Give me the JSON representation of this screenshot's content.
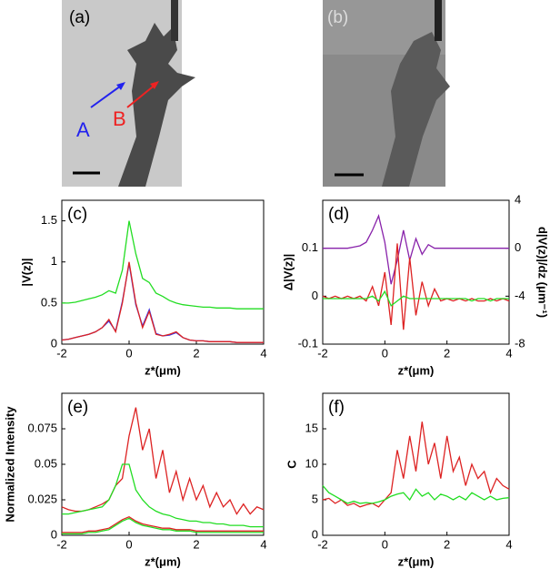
{
  "chart_data": [
    {
      "type": "image",
      "label": "(a)",
      "annotations": [
        "A",
        "B"
      ]
    },
    {
      "type": "image",
      "label": "(b)"
    },
    {
      "type": "line",
      "label": "(c)",
      "ylabel": "|V(z)|",
      "xlabel": "z*(μm)",
      "x": [
        -2,
        -1.8,
        -1.6,
        -1.4,
        -1.2,
        -1,
        -0.8,
        -0.6,
        -0.4,
        -0.2,
        0,
        0.2,
        0.4,
        0.6,
        0.8,
        1,
        1.2,
        1.4,
        1.6,
        1.8,
        2,
        2.2,
        2.4,
        2.6,
        2.8,
        3,
        3.2,
        3.4,
        3.6,
        3.8,
        4
      ],
      "xlim": [
        -2,
        4
      ],
      "xticks": [
        -2,
        0,
        2,
        4
      ],
      "ylim": [
        0,
        1.75
      ],
      "yticks": [
        0,
        0.5,
        1,
        1.5
      ],
      "series": [
        {
          "color": "#22dd22",
          "values": [
            0.5,
            0.5,
            0.51,
            0.53,
            0.55,
            0.57,
            0.6,
            0.65,
            0.62,
            0.9,
            1.5,
            1.1,
            0.8,
            0.75,
            0.62,
            0.58,
            0.53,
            0.5,
            0.48,
            0.47,
            0.46,
            0.45,
            0.45,
            0.44,
            0.44,
            0.44,
            0.43,
            0.43,
            0.43,
            0.43,
            0.43
          ]
        },
        {
          "color": "#3333ee",
          "values": [
            0.05,
            0.06,
            0.08,
            0.1,
            0.12,
            0.15,
            0.2,
            0.28,
            0.16,
            0.52,
            0.98,
            0.48,
            0.22,
            0.42,
            0.13,
            0.1,
            0.11,
            0.14,
            0.08,
            0.05,
            0.04,
            0.04,
            0.03,
            0.03,
            0.03,
            0.03,
            0.02,
            0.02,
            0.02,
            0.02,
            0.02
          ]
        },
        {
          "color": "#dd2222",
          "values": [
            0.05,
            0.06,
            0.08,
            0.1,
            0.12,
            0.15,
            0.2,
            0.3,
            0.15,
            0.5,
            1.0,
            0.5,
            0.2,
            0.4,
            0.12,
            0.1,
            0.12,
            0.15,
            0.08,
            0.05,
            0.04,
            0.04,
            0.03,
            0.03,
            0.03,
            0.03,
            0.02,
            0.02,
            0.02,
            0.02,
            0.02
          ]
        }
      ]
    },
    {
      "type": "line",
      "label": "(d)",
      "ylabel": "Δ|V(z)|",
      "y2label": "d|V(z)|/dz (μm⁻¹)",
      "xlabel": "z*(μm)",
      "x": [
        -2,
        -1.8,
        -1.6,
        -1.4,
        -1.2,
        -1,
        -0.8,
        -0.6,
        -0.4,
        -0.2,
        0,
        0.2,
        0.4,
        0.6,
        0.8,
        1,
        1.2,
        1.4,
        1.6,
        1.8,
        2,
        2.2,
        2.4,
        2.6,
        2.8,
        3,
        3.2,
        3.4,
        3.6,
        3.8,
        4
      ],
      "xlim": [
        -2,
        4
      ],
      "xticks": [
        -2,
        0,
        2,
        4
      ],
      "ylim": [
        -0.1,
        0.2
      ],
      "yticks": [
        -0.1,
        0,
        0.1
      ],
      "y2lim": [
        -8,
        4
      ],
      "y2ticks": [
        -8,
        -4,
        0,
        4
      ],
      "series": [
        {
          "color": "#8822aa",
          "axis": "y2",
          "values": [
            0,
            0,
            0,
            0,
            0,
            0.1,
            0.2,
            0.5,
            1.5,
            2.7,
            0.5,
            -3,
            -1,
            1.5,
            -1,
            0.8,
            -0.5,
            0.3,
            0,
            0,
            0,
            0,
            0,
            0,
            0,
            0,
            0,
            0,
            0,
            0,
            0
          ]
        },
        {
          "color": "#dd2222",
          "values": [
            0,
            -0.005,
            0,
            -0.005,
            0,
            -0.005,
            0,
            -0.01,
            0.02,
            -0.02,
            0.05,
            -0.06,
            0.11,
            -0.07,
            0.08,
            -0.04,
            0.03,
            -0.02,
            0.015,
            -0.01,
            -0.005,
            -0.01,
            -0.005,
            -0.01,
            -0.005,
            -0.01,
            -0.01,
            -0.005,
            -0.01,
            -0.005,
            -0.01
          ]
        },
        {
          "color": "#22dd22",
          "values": [
            -0.005,
            -0.005,
            -0.005,
            -0.005,
            -0.005,
            -0.005,
            -0.005,
            -0.005,
            0,
            -0.01,
            0.01,
            -0.02,
            -0.01,
            0,
            -0.005,
            -0.005,
            -0.005,
            -0.005,
            -0.005,
            -0.005,
            -0.005,
            -0.005,
            -0.005,
            -0.005,
            -0.01,
            -0.005,
            -0.005,
            -0.01,
            -0.005,
            -0.005,
            -0.005
          ]
        }
      ]
    },
    {
      "type": "line",
      "label": "(e)",
      "ylabel": "Normalized Intensity",
      "xlabel": "z*(μm)",
      "x": [
        -2,
        -1.8,
        -1.6,
        -1.4,
        -1.2,
        -1,
        -0.8,
        -0.6,
        -0.4,
        -0.2,
        0,
        0.2,
        0.4,
        0.6,
        0.8,
        1,
        1.2,
        1.4,
        1.6,
        1.8,
        2,
        2.2,
        2.4,
        2.6,
        2.8,
        3,
        3.2,
        3.4,
        3.6,
        3.8,
        4
      ],
      "xlim": [
        -2,
        4
      ],
      "xticks": [
        -2,
        0,
        2,
        4
      ],
      "ylim": [
        0,
        0.1
      ],
      "yticks": [
        0,
        0.025,
        0.05,
        0.075
      ],
      "series": [
        {
          "color": "#dd2222",
          "values": [
            0.02,
            0.018,
            0.017,
            0.017,
            0.018,
            0.02,
            0.022,
            0.025,
            0.035,
            0.04,
            0.07,
            0.09,
            0.06,
            0.075,
            0.04,
            0.06,
            0.03,
            0.045,
            0.025,
            0.04,
            0.025,
            0.035,
            0.02,
            0.03,
            0.02,
            0.025,
            0.015,
            0.022,
            0.015,
            0.02,
            0.018
          ]
        },
        {
          "color": "#22dd22",
          "values": [
            0.015,
            0.015,
            0.016,
            0.017,
            0.018,
            0.019,
            0.02,
            0.025,
            0.035,
            0.05,
            0.05,
            0.032,
            0.025,
            0.02,
            0.017,
            0.015,
            0.014,
            0.012,
            0.011,
            0.01,
            0.01,
            0.009,
            0.009,
            0.008,
            0.008,
            0.007,
            0.007,
            0.007,
            0.006,
            0.006,
            0.006
          ]
        },
        {
          "color": "#dd2222",
          "values": [
            0.002,
            0.002,
            0.002,
            0.002,
            0.003,
            0.003,
            0.004,
            0.005,
            0.008,
            0.011,
            0.013,
            0.01,
            0.008,
            0.007,
            0.006,
            0.005,
            0.005,
            0.004,
            0.004,
            0.004,
            0.003,
            0.003,
            0.003,
            0.003,
            0.003,
            0.003,
            0.003,
            0.003,
            0.003,
            0.003,
            0.003
          ]
        },
        {
          "color": "#22dd22",
          "values": [
            0.001,
            0.001,
            0.001,
            0.001,
            0.002,
            0.002,
            0.003,
            0.004,
            0.007,
            0.01,
            0.012,
            0.009,
            0.007,
            0.006,
            0.005,
            0.004,
            0.004,
            0.003,
            0.003,
            0.003,
            0.002,
            0.002,
            0.002,
            0.002,
            0.002,
            0.002,
            0.002,
            0.002,
            0.002,
            0.002,
            0.002
          ]
        }
      ]
    },
    {
      "type": "line",
      "label": "(f)",
      "ylabel": "C",
      "xlabel": "z*(μm)",
      "x": [
        -2,
        -1.8,
        -1.6,
        -1.4,
        -1.2,
        -1,
        -0.8,
        -0.6,
        -0.4,
        -0.2,
        0,
        0.2,
        0.4,
        0.6,
        0.8,
        1,
        1.2,
        1.4,
        1.6,
        1.8,
        2,
        2.2,
        2.4,
        2.6,
        2.8,
        3,
        3.2,
        3.4,
        3.6,
        3.8,
        4
      ],
      "xlim": [
        -2,
        4
      ],
      "xticks": [
        -2,
        0,
        2,
        4
      ],
      "ylim": [
        0,
        20
      ],
      "yticks": [
        0,
        5,
        10,
        15
      ],
      "series": [
        {
          "color": "#dd2222",
          "values": [
            5,
            5.2,
            4.5,
            5,
            4.2,
            4.5,
            4,
            4.3,
            4.5,
            4,
            5,
            6,
            12,
            8,
            14,
            9,
            16,
            10,
            13,
            8,
            14,
            9,
            11,
            7,
            10,
            8,
            9,
            6,
            8,
            7,
            6.5
          ]
        },
        {
          "color": "#22dd22",
          "values": [
            7,
            6,
            5.5,
            5,
            4.5,
            4.8,
            4.5,
            4.6,
            4.5,
            4.7,
            5,
            5.5,
            5.8,
            6,
            5,
            6.5,
            5.5,
            6,
            5,
            5.8,
            5.5,
            5,
            5.5,
            5,
            6,
            5.5,
            5,
            5.5,
            5,
            5.2,
            5.3
          ]
        }
      ]
    }
  ]
}
